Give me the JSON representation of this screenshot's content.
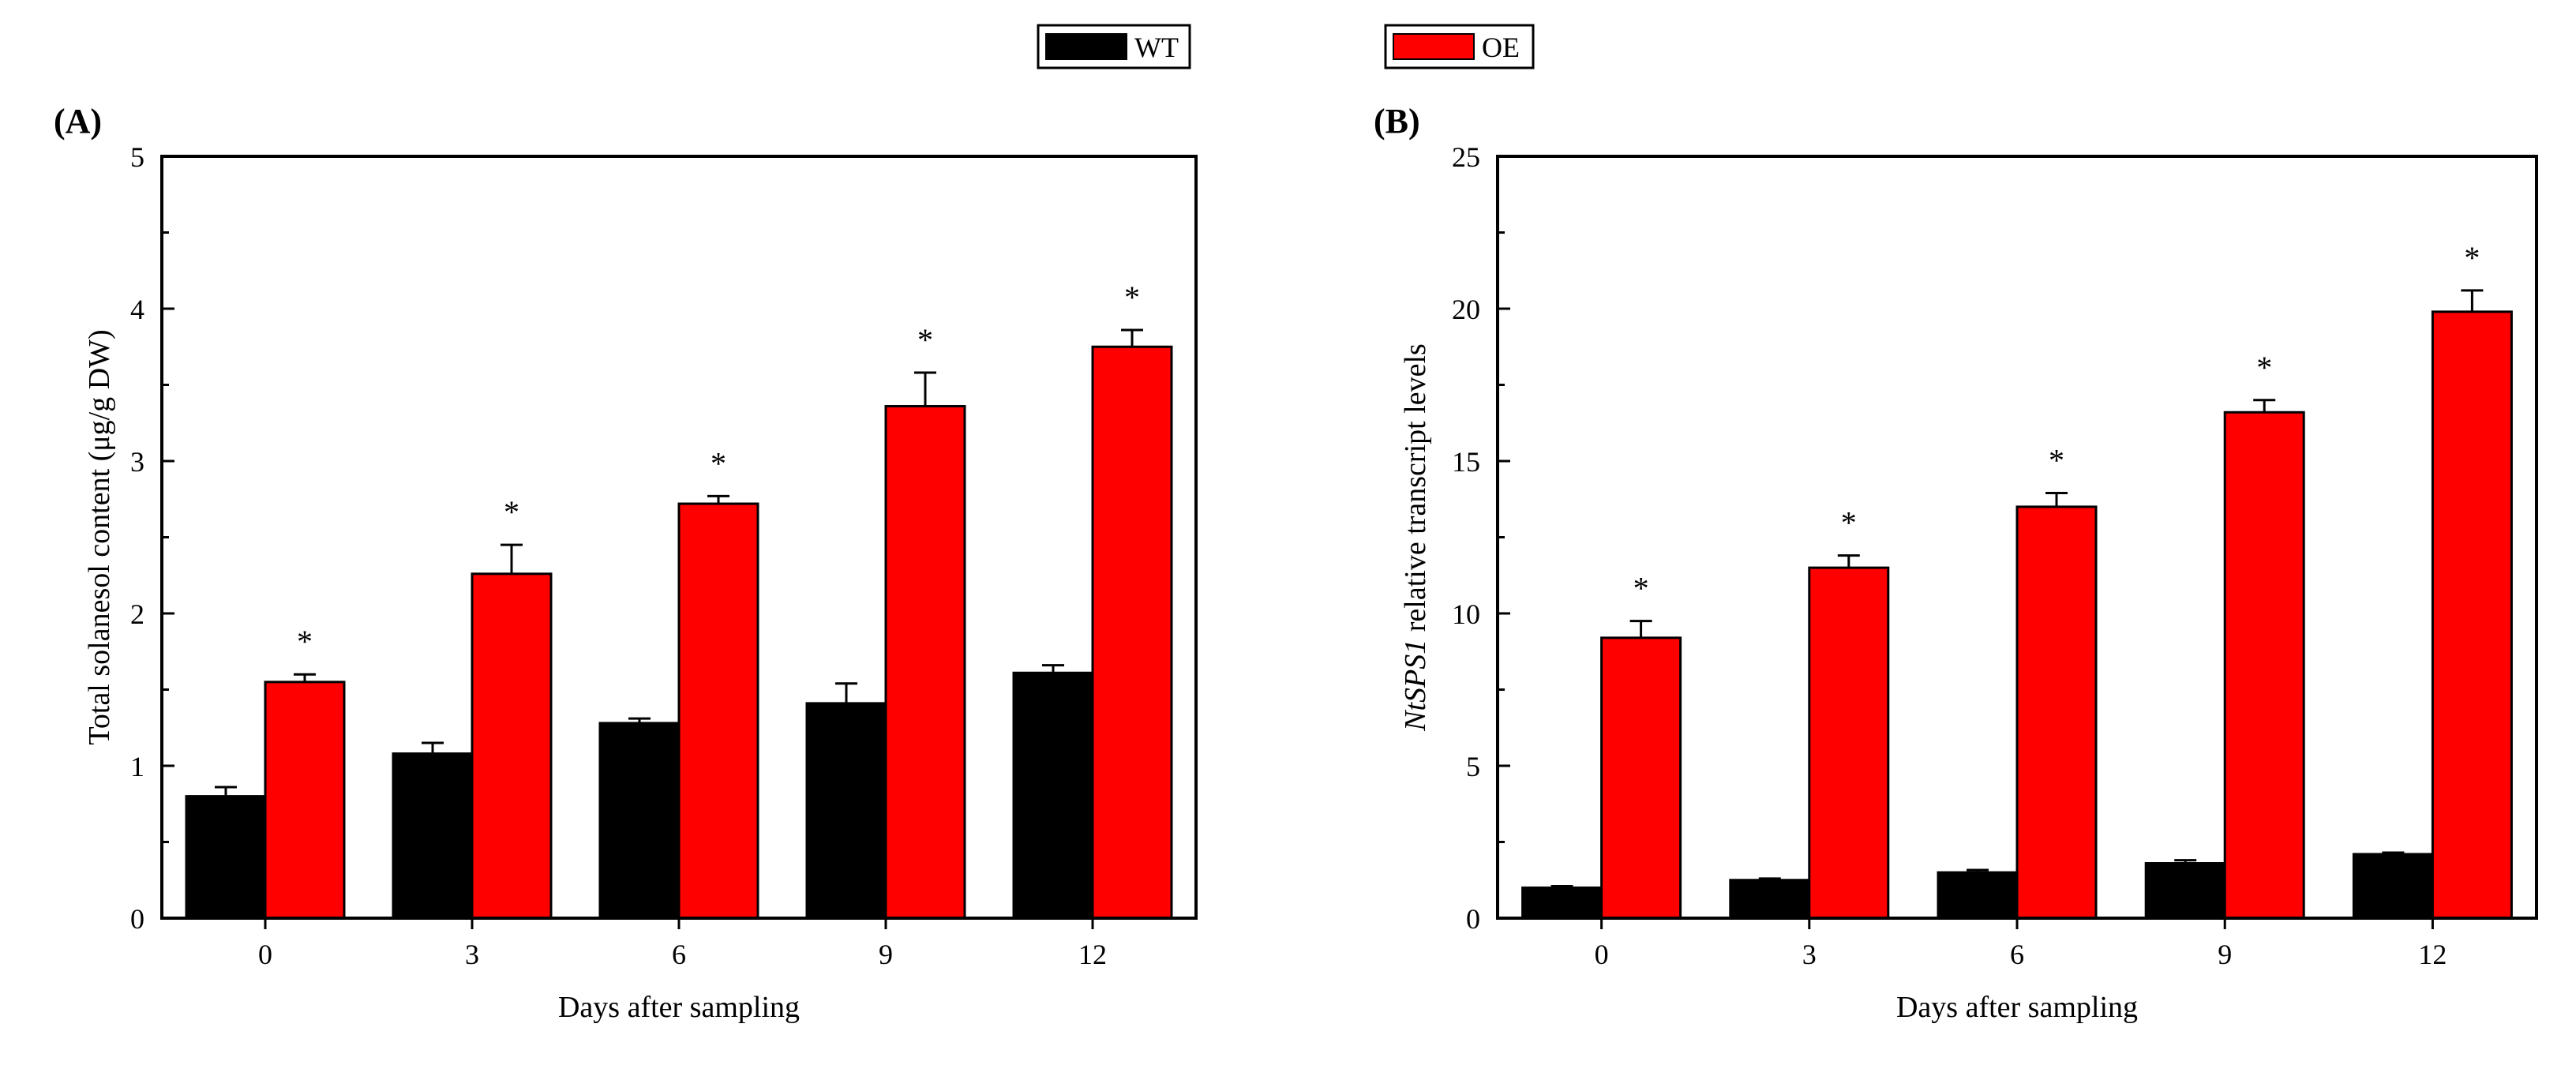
{
  "legend": {
    "entries": [
      {
        "name": "WT",
        "color": "#000000"
      },
      {
        "name": "OE",
        "color": "#ff0000"
      }
    ],
    "placement": "top-center"
  },
  "chart_data": [
    {
      "type": "bar",
      "panel_label": "(A)",
      "title": "",
      "xlabel": "Days after sampling",
      "ylabel": "Total solanesol content (μg/g DW)",
      "ylabel_italic_prefix": "",
      "categories": [
        "0",
        "3",
        "6",
        "9",
        "12"
      ],
      "ylim": [
        0,
        5
      ],
      "yticks": [
        "0",
        "1",
        "2",
        "3",
        "4",
        "5"
      ],
      "significance_marker": "*",
      "series": [
        {
          "name": "WT",
          "color": "#000000",
          "values": [
            0.8,
            1.08,
            1.28,
            1.41,
            1.61
          ],
          "errors": [
            0.06,
            0.07,
            0.03,
            0.13,
            0.05
          ],
          "significant": [
            false,
            false,
            false,
            false,
            false
          ]
        },
        {
          "name": "OE",
          "color": "#ff0000",
          "values": [
            1.55,
            2.26,
            2.72,
            3.36,
            3.75
          ],
          "errors": [
            0.05,
            0.19,
            0.05,
            0.22,
            0.11
          ],
          "significant": [
            true,
            true,
            true,
            true,
            true
          ]
        }
      ]
    },
    {
      "type": "bar",
      "panel_label": "(B)",
      "title": "",
      "xlabel": "Days after sampling",
      "ylabel": " relative transcript levels",
      "ylabel_italic_prefix": "NtSPS1",
      "categories": [
        "0",
        "3",
        "6",
        "9",
        "12"
      ],
      "ylim": [
        0,
        25
      ],
      "yticks": [
        "0",
        "5",
        "10",
        "15",
        "20",
        "25"
      ],
      "significance_marker": "*",
      "series": [
        {
          "name": "WT",
          "color": "#000000",
          "values": [
            1.0,
            1.25,
            1.5,
            1.8,
            2.1
          ],
          "errors": [
            0.05,
            0.05,
            0.08,
            0.1,
            0.05
          ],
          "significant": [
            false,
            false,
            false,
            false,
            false
          ]
        },
        {
          "name": "OE",
          "color": "#ff0000",
          "values": [
            9.2,
            11.5,
            13.5,
            16.6,
            19.9
          ],
          "errors": [
            0.55,
            0.4,
            0.45,
            0.4,
            0.7
          ],
          "significant": [
            true,
            true,
            true,
            true,
            true
          ]
        }
      ]
    }
  ]
}
